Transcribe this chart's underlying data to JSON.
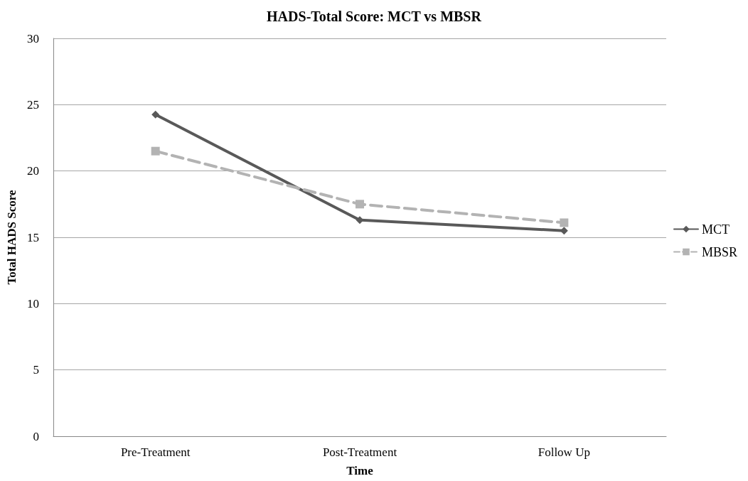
{
  "chart_data": {
    "type": "line",
    "title": "HADS-Total Score: MCT vs MBSR",
    "xlabel": "Time",
    "ylabel": "Total HADS Score",
    "categories": [
      "Pre-Treatment",
      "Post-Treatment",
      "Follow Up"
    ],
    "series": [
      {
        "name": "MCT",
        "color": "#595959",
        "values": [
          24.25,
          16.3,
          15.5
        ],
        "marker": "diamond",
        "line_style": "solid"
      },
      {
        "name": "MBSR",
        "color": "#b3b3b3",
        "values": [
          21.5,
          17.5,
          16.1
        ],
        "marker": "square",
        "line_style": "dashed"
      }
    ],
    "ylim": [
      0,
      30
    ],
    "yticks": [
      0,
      5,
      10,
      15,
      20,
      25,
      30
    ],
    "grid": "y",
    "legend": "right"
  }
}
